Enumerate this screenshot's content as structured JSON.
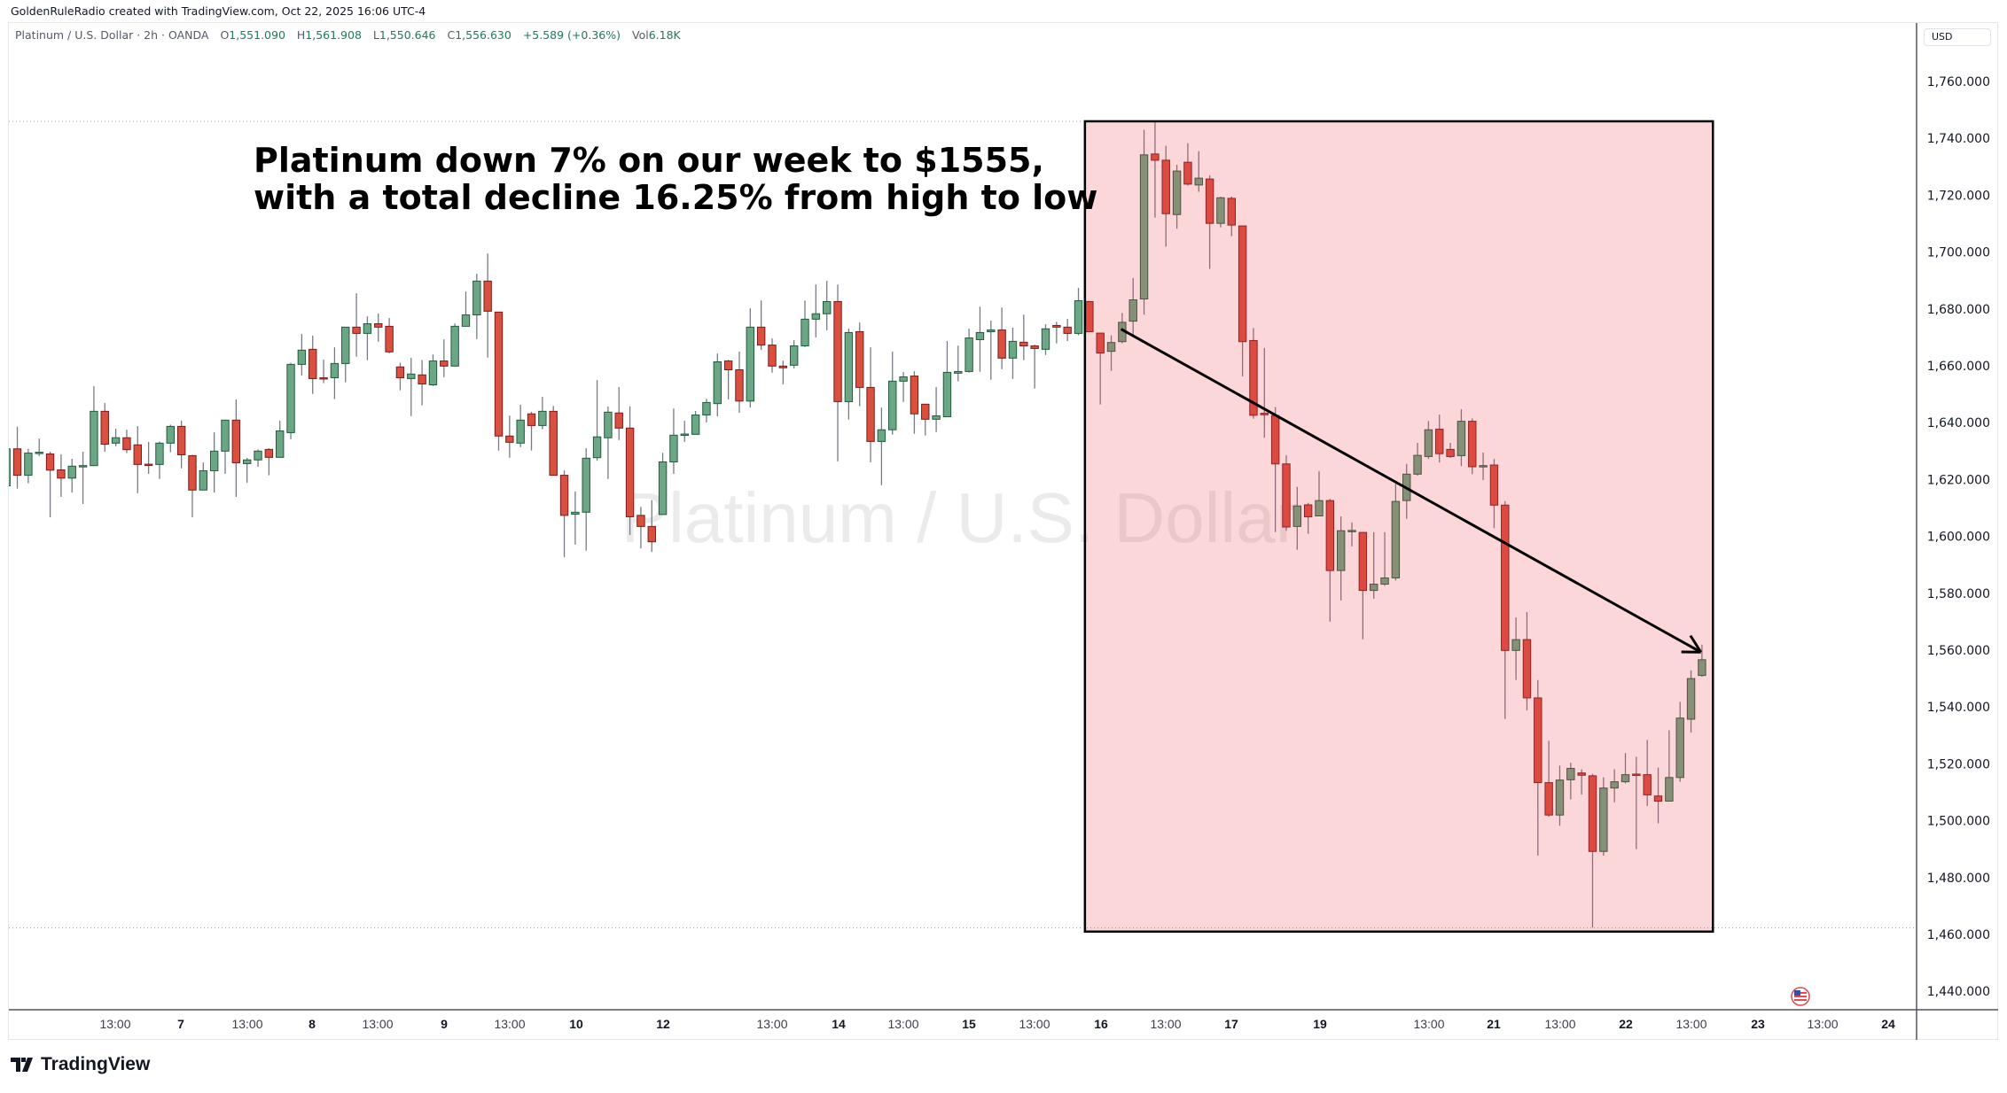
{
  "header": {
    "credit": "GoldenRuleRadio created with TradingView.com, Oct 22, 2025 16:06 UTC-4"
  },
  "legend": {
    "symbol": "Platinum / U.S. Dollar · 2h · OANDA",
    "o_label": "O",
    "o": "1,551.090",
    "h_label": "H",
    "h": "1,561.908",
    "l_label": "L",
    "l": "1,550.646",
    "c_label": "C",
    "c": "1,556.630",
    "change": "+5.589 (+0.36%)",
    "vol_label": "Vol",
    "vol": "6.18K"
  },
  "annotation": {
    "line1": "Platinum down 7% on our week to $1555,",
    "line2": "with a total decline 16.25% from high to low"
  },
  "watermark": "Platinum / U.S. Dollar",
  "price_axis": {
    "currency": "USD"
  },
  "footer": {
    "logo": "TradingView"
  },
  "colors": {
    "up": "#6ba784",
    "up_border": "#215c3d",
    "down": "#d9503f",
    "down_border": "#7a1c1c",
    "wick": "#787b86",
    "highlight": "rgba(242,54,69,0.2)"
  },
  "chart_data": {
    "type": "candlestick",
    "title": "Platinum / U.S. Dollar · 2h · OANDA",
    "ylabel": "USD",
    "ylim": [
      1430,
      1770
    ],
    "y_ticks": [
      "1,760.000",
      "1,740.000",
      "1,720.000",
      "1,700.000",
      "1,680.000",
      "1,660.000",
      "1,640.000",
      "1,620.000",
      "1,600.000",
      "1,580.000",
      "1,560.000",
      "1,540.000",
      "1,520.000",
      "1,500.000",
      "1,480.000",
      "1,460.000",
      "1,440.000"
    ],
    "x_ticks": [
      {
        "label": "13:00",
        "day": false
      },
      {
        "label": "7",
        "day": true
      },
      {
        "label": "13:00",
        "day": false
      },
      {
        "label": "8",
        "day": true
      },
      {
        "label": "13:00",
        "day": false
      },
      {
        "label": "9",
        "day": true
      },
      {
        "label": "13:00",
        "day": false
      },
      {
        "label": "10",
        "day": true
      },
      {
        "label": "12",
        "day": true
      },
      {
        "label": "13:00",
        "day": false
      },
      {
        "label": "14",
        "day": true
      },
      {
        "label": "13:00",
        "day": false
      },
      {
        "label": "15",
        "day": true
      },
      {
        "label": "13:00",
        "day": false
      },
      {
        "label": "16",
        "day": true
      },
      {
        "label": "13:00",
        "day": false
      },
      {
        "label": "17",
        "day": true
      },
      {
        "label": "19",
        "day": true
      },
      {
        "label": "13:00",
        "day": false
      },
      {
        "label": "21",
        "day": true
      },
      {
        "label": "13:00",
        "day": false
      },
      {
        "label": "22",
        "day": true
      },
      {
        "label": "13:00",
        "day": false
      },
      {
        "label": "23",
        "day": true
      },
      {
        "label": "13:00",
        "day": false
      },
      {
        "label": "24",
        "day": true
      }
    ],
    "highlight_range": {
      "from_candle": 100,
      "to_candle": 157,
      "high": 1746.0,
      "low": 1461.0
    },
    "period_high": 1746.0,
    "period_low": 1462.3,
    "trendline": {
      "from": {
        "candle": 102.9,
        "price": 1672.9
      },
      "to": {
        "candle": 155.9,
        "price": 1559.3
      }
    },
    "ohlc": [
      [
        1617.8,
        1630.8,
        1617.0,
        1630.8
      ],
      [
        1630.8,
        1638.6,
        1616.8,
        1621.5
      ],
      [
        1621.5,
        1630.8,
        1618.7,
        1629.3
      ],
      [
        1629.4,
        1634.4,
        1628.2,
        1629.6
      ],
      [
        1629.0,
        1629.8,
        1606.7,
        1623.3
      ],
      [
        1623.4,
        1628.9,
        1613.9,
        1620.5
      ],
      [
        1620.5,
        1627.3,
        1615.4,
        1624.7
      ],
      [
        1624.7,
        1629.8,
        1611.4,
        1624.9
      ],
      [
        1624.9,
        1652.8,
        1624.9,
        1644.0
      ],
      [
        1644.0,
        1646.9,
        1629.8,
        1632.4
      ],
      [
        1632.8,
        1637.9,
        1631.7,
        1634.7
      ],
      [
        1634.7,
        1637.5,
        1629.3,
        1630.5
      ],
      [
        1632.2,
        1638.8,
        1615.2,
        1625.3
      ],
      [
        1625.4,
        1633.2,
        1622.0,
        1625.2
      ],
      [
        1625.3,
        1633.4,
        1620.2,
        1632.8
      ],
      [
        1632.8,
        1639.3,
        1629.6,
        1638.7
      ],
      [
        1638.7,
        1640.7,
        1623.9,
        1628.7
      ],
      [
        1628.4,
        1628.7,
        1606.7,
        1616.3
      ],
      [
        1616.3,
        1626.0,
        1616.3,
        1623.1
      ],
      [
        1623.1,
        1636.6,
        1615.4,
        1630.0
      ],
      [
        1630.0,
        1640.9,
        1622.0,
        1640.9
      ],
      [
        1640.9,
        1648.2,
        1613.9,
        1625.9
      ],
      [
        1625.6,
        1627.6,
        1618.9,
        1626.9
      ],
      [
        1626.9,
        1630.6,
        1624.5,
        1630.0
      ],
      [
        1630.6,
        1631.0,
        1621.5,
        1627.8
      ],
      [
        1627.8,
        1640.7,
        1627.8,
        1637.1
      ],
      [
        1636.5,
        1661.1,
        1634.2,
        1660.5
      ],
      [
        1660.5,
        1671.2,
        1656.6,
        1665.5
      ],
      [
        1665.8,
        1670.6,
        1650.1,
        1655.5
      ],
      [
        1655.8,
        1662.2,
        1653.9,
        1655.6
      ],
      [
        1655.8,
        1666.5,
        1648.3,
        1660.8
      ],
      [
        1660.8,
        1673.6,
        1654.2,
        1673.6
      ],
      [
        1673.6,
        1685.5,
        1663.2,
        1671.4
      ],
      [
        1671.4,
        1677.4,
        1662.0,
        1674.8
      ],
      [
        1674.8,
        1678.4,
        1668.5,
        1673.6
      ],
      [
        1673.9,
        1676.8,
        1664.4,
        1664.9
      ],
      [
        1659.6,
        1661.1,
        1651.4,
        1655.8
      ],
      [
        1655.5,
        1662.8,
        1642.3,
        1657.1
      ],
      [
        1656.8,
        1662.0,
        1646.1,
        1653.6
      ],
      [
        1653.3,
        1664.0,
        1652.9,
        1661.7
      ],
      [
        1661.7,
        1669.3,
        1656.0,
        1659.9
      ],
      [
        1659.9,
        1674.9,
        1659.9,
        1673.9
      ],
      [
        1673.9,
        1686.1,
        1673.9,
        1677.9
      ],
      [
        1677.9,
        1692.4,
        1669.4,
        1689.8
      ],
      [
        1689.8,
        1699.5,
        1662.9,
        1679.2
      ],
      [
        1678.9,
        1678.9,
        1630.2,
        1635.3
      ],
      [
        1635.3,
        1642.5,
        1627.7,
        1633.1
      ],
      [
        1632.8,
        1646.3,
        1631.4,
        1640.9
      ],
      [
        1643.1,
        1643.8,
        1630.2,
        1639.0
      ],
      [
        1639.0,
        1649.1,
        1637.7,
        1644.0
      ],
      [
        1644.0,
        1645.9,
        1621.5,
        1621.5
      ],
      [
        1621.5,
        1623.2,
        1592.7,
        1607.4
      ],
      [
        1607.8,
        1615.8,
        1597.1,
        1608.5
      ],
      [
        1608.5,
        1631.0,
        1595.0,
        1627.5
      ],
      [
        1627.7,
        1655.0,
        1626.6,
        1635.0
      ],
      [
        1634.7,
        1645.7,
        1620.2,
        1643.7
      ],
      [
        1643.4,
        1652.5,
        1633.9,
        1638.1
      ],
      [
        1638.1,
        1645.7,
        1600.5,
        1606.9
      ],
      [
        1607.4,
        1610.4,
        1595.8,
        1603.5
      ],
      [
        1603.5,
        1612.8,
        1594.5,
        1598.1
      ],
      [
        1607.7,
        1629.4,
        1607.7,
        1626.2
      ],
      [
        1626.2,
        1645.0,
        1622.0,
        1635.6
      ],
      [
        1635.8,
        1640.7,
        1633.2,
        1636.0
      ],
      [
        1635.9,
        1644.1,
        1635.9,
        1642.7
      ],
      [
        1642.7,
        1648.4,
        1640.1,
        1647.1
      ],
      [
        1646.7,
        1664.3,
        1642.2,
        1661.4
      ],
      [
        1661.7,
        1662.1,
        1648.2,
        1658.6
      ],
      [
        1658.6,
        1665.0,
        1643.5,
        1647.6
      ],
      [
        1647.6,
        1680.2,
        1645.3,
        1673.6
      ],
      [
        1673.6,
        1683.0,
        1665.6,
        1667.3
      ],
      [
        1667.3,
        1669.6,
        1657.6,
        1659.9
      ],
      [
        1659.9,
        1661.8,
        1653.5,
        1659.3
      ],
      [
        1660.2,
        1669.0,
        1659.1,
        1667.0
      ],
      [
        1667.0,
        1683.0,
        1666.6,
        1676.4
      ],
      [
        1676.4,
        1688.6,
        1670.0,
        1678.3
      ],
      [
        1678.3,
        1689.9,
        1672.5,
        1682.6
      ],
      [
        1682.6,
        1688.6,
        1626.4,
        1647.4
      ],
      [
        1647.4,
        1673.1,
        1641.1,
        1671.7
      ],
      [
        1672.0,
        1675.2,
        1645.8,
        1652.4
      ],
      [
        1652.4,
        1666.5,
        1626.1,
        1633.4
      ],
      [
        1633.4,
        1645.3,
        1618.0,
        1637.5
      ],
      [
        1637.5,
        1665.0,
        1635.8,
        1654.6
      ],
      [
        1654.6,
        1657.8,
        1647.3,
        1656.1
      ],
      [
        1656.4,
        1658.1,
        1636.1,
        1643.1
      ],
      [
        1646.5,
        1646.5,
        1635.5,
        1641.2
      ],
      [
        1641.2,
        1652.5,
        1636.7,
        1642.4
      ],
      [
        1642.1,
        1668.7,
        1642.1,
        1657.7
      ],
      [
        1657.4,
        1667.1,
        1654.5,
        1658.0
      ],
      [
        1658.0,
        1673.1,
        1657.6,
        1669.8
      ],
      [
        1669.2,
        1680.8,
        1657.9,
        1671.7
      ],
      [
        1672.0,
        1675.9,
        1655.1,
        1672.6
      ],
      [
        1672.6,
        1680.5,
        1658.8,
        1662.7
      ],
      [
        1662.7,
        1673.4,
        1655.4,
        1668.6
      ],
      [
        1668.3,
        1678.0,
        1662.0,
        1667.0
      ],
      [
        1667.0,
        1667.4,
        1652.0,
        1666.1
      ],
      [
        1665.8,
        1674.6,
        1663.8,
        1673.0
      ],
      [
        1674.2,
        1675.5,
        1667.9,
        1673.6
      ],
      [
        1673.6,
        1676.5,
        1668.7,
        1671.4
      ],
      [
        1671.4,
        1687.4,
        1670.7,
        1682.9
      ],
      [
        1682.6,
        1682.6,
        1672.0,
        1672.0
      ],
      [
        1671.5,
        1671.5,
        1646.4,
        1664.5
      ],
      [
        1665.1,
        1670.7,
        1658.2,
        1668.2
      ],
      [
        1668.5,
        1678.6,
        1667.9,
        1675.3
      ],
      [
        1675.7,
        1690.9,
        1670.7,
        1683.2
      ],
      [
        1683.5,
        1743.0,
        1678.0,
        1734.2
      ],
      [
        1734.5,
        1745.8,
        1712.1,
        1732.3
      ],
      [
        1732.3,
        1737.4,
        1701.9,
        1713.5
      ],
      [
        1713.2,
        1730.7,
        1708.2,
        1728.5
      ],
      [
        1731.6,
        1738.3,
        1723.4,
        1723.9
      ],
      [
        1723.6,
        1735.5,
        1721.2,
        1726.0
      ],
      [
        1725.7,
        1727.0,
        1694.1,
        1710.1
      ],
      [
        1710.1,
        1719.5,
        1708.7,
        1719.1
      ],
      [
        1718.9,
        1719.5,
        1705.6,
        1709.5
      ],
      [
        1709.2,
        1709.2,
        1656.3,
        1668.5
      ],
      [
        1668.9,
        1673.3,
        1641.4,
        1642.6
      ],
      [
        1643.3,
        1666.3,
        1634.7,
        1642.8
      ],
      [
        1642.5,
        1645.5,
        1601.5,
        1625.5
      ],
      [
        1625.5,
        1628.6,
        1602.0,
        1603.3
      ],
      [
        1603.5,
        1617.4,
        1595.3,
        1610.7
      ],
      [
        1611.1,
        1611.8,
        1600.9,
        1606.9
      ],
      [
        1607.2,
        1623.0,
        1607.2,
        1612.6
      ],
      [
        1612.6,
        1613.2,
        1570.0,
        1588.0
      ],
      [
        1588.0,
        1607.0,
        1577.5,
        1602.0
      ],
      [
        1601.8,
        1604.9,
        1596.5,
        1602.1
      ],
      [
        1601.4,
        1601.5,
        1563.8,
        1581.0
      ],
      [
        1581.0,
        1601.5,
        1578.1,
        1583.2
      ],
      [
        1583.2,
        1601.5,
        1582.6,
        1585.4
      ],
      [
        1585.4,
        1618.5,
        1584.5,
        1612.3
      ],
      [
        1612.6,
        1625.5,
        1606.2,
        1621.9
      ],
      [
        1621.9,
        1632.9,
        1621.4,
        1628.5
      ],
      [
        1628.1,
        1640.6,
        1627.2,
        1637.5
      ],
      [
        1637.7,
        1642.8,
        1626.0,
        1629.1
      ],
      [
        1630.6,
        1632.9,
        1627.6,
        1628.1
      ],
      [
        1628.4,
        1644.7,
        1624.7,
        1640.5
      ],
      [
        1640.5,
        1641.5,
        1621.9,
        1624.5
      ],
      [
        1624.8,
        1629.5,
        1619.8,
        1624.9
      ],
      [
        1625.1,
        1627.2,
        1602.9,
        1611.0
      ],
      [
        1611.0,
        1612.4,
        1535.8,
        1559.9
      ],
      [
        1559.9,
        1571.5,
        1549.5,
        1563.7
      ],
      [
        1563.7,
        1573.4,
        1538.8,
        1543.2
      ],
      [
        1543.2,
        1549.5,
        1487.7,
        1513.4
      ],
      [
        1513.4,
        1528.1,
        1501.4,
        1502.0
      ],
      [
        1502.0,
        1519.4,
        1498.2,
        1514.3
      ],
      [
        1514.4,
        1520.4,
        1507.5,
        1518.4
      ],
      [
        1516.8,
        1518.1,
        1509.2,
        1516.0
      ],
      [
        1515.8,
        1516.5,
        1462.4,
        1489.2
      ],
      [
        1489.2,
        1515.3,
        1487.7,
        1511.5
      ],
      [
        1511.5,
        1518.1,
        1506.5,
        1513.7
      ],
      [
        1513.7,
        1523.8,
        1513.1,
        1516.2
      ],
      [
        1516.4,
        1522.5,
        1490.0,
        1516.2
      ],
      [
        1516.2,
        1528.4,
        1505.2,
        1509.1
      ],
      [
        1508.7,
        1518.7,
        1499.1,
        1506.9
      ],
      [
        1506.9,
        1531.8,
        1506.9,
        1515.2
      ],
      [
        1515.2,
        1541.8,
        1513.7,
        1536.1
      ],
      [
        1535.7,
        1552.9,
        1531.0,
        1550.0
      ],
      [
        1551.09,
        1561.908,
        1550.646,
        1556.63
      ]
    ]
  }
}
